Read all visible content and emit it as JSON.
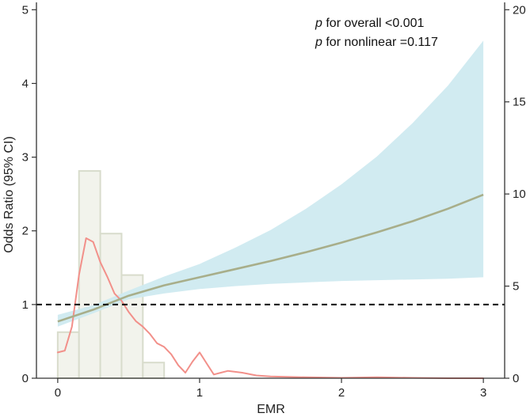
{
  "chart_data": {
    "type": "line",
    "xlabel": "EMR",
    "ylabel": "Odds Ratio (95% CI)",
    "xlim": [
      -0.15,
      3.15
    ],
    "ylim": [
      0,
      5.1
    ],
    "y2lim": [
      0,
      20.4
    ],
    "x_ticks": [
      0,
      1,
      2,
      3
    ],
    "y_ticks": [
      0,
      1,
      2,
      3,
      4,
      5
    ],
    "y2_ticks": [
      0,
      5,
      10,
      15,
      20
    ],
    "annotations": [
      {
        "italic": "p",
        "text": " for overall <0.001"
      },
      {
        "italic": "p",
        "text": " for nonlinear =0.117"
      }
    ],
    "reference_line": {
      "y": 1,
      "style": "dashed"
    },
    "colors": {
      "or_line": "#a8ae8a",
      "ci_band": "#cfeaf0",
      "density": "#f2908a",
      "histogram_fill": "#f2f3ec",
      "histogram_edge": "#d8dccc",
      "reference": "#000000"
    },
    "series": [
      {
        "kind": "odds_ratio",
        "x": [
          0,
          0.25,
          0.5,
          0.75,
          1,
          1.25,
          1.5,
          1.75,
          2,
          2.25,
          2.5,
          2.75,
          3
        ],
        "y": [
          0.77,
          0.93,
          1.12,
          1.26,
          1.37,
          1.48,
          1.59,
          1.71,
          1.84,
          1.98,
          2.13,
          2.3,
          2.49
        ],
        "lower": [
          0.7,
          0.88,
          1.07,
          1.15,
          1.21,
          1.25,
          1.28,
          1.3,
          1.32,
          1.33,
          1.34,
          1.35,
          1.37
        ],
        "upper": [
          0.86,
          0.99,
          1.19,
          1.38,
          1.55,
          1.77,
          2.01,
          2.3,
          2.63,
          3.01,
          3.46,
          3.97,
          4.58
        ]
      },
      {
        "kind": "density",
        "axis": "right",
        "x": [
          0,
          0.05,
          0.1,
          0.15,
          0.2,
          0.25,
          0.3,
          0.35,
          0.4,
          0.45,
          0.5,
          0.55,
          0.6,
          0.65,
          0.7,
          0.75,
          0.8,
          0.85,
          0.9,
          0.95,
          1.0,
          1.05,
          1.1,
          1.15,
          1.2,
          1.3,
          1.4,
          1.5,
          1.75,
          2.0,
          2.25,
          2.5,
          2.75,
          3.0
        ],
        "y": [
          1.4,
          1.5,
          2.8,
          5.6,
          7.6,
          7.4,
          6.3,
          5.5,
          4.6,
          4.2,
          3.6,
          3.1,
          2.8,
          2.4,
          1.9,
          1.7,
          1.3,
          0.7,
          0.3,
          0.9,
          1.4,
          0.8,
          0.2,
          0.3,
          0.4,
          0.3,
          0.15,
          0.1,
          0.05,
          0.02,
          0.05,
          0.02,
          0.0,
          0.0
        ]
      },
      {
        "kind": "histogram",
        "axis": "right",
        "bin_edges": [
          0,
          0.15,
          0.3,
          0.45,
          0.6,
          0.75
        ],
        "values": [
          2.5,
          11.25,
          7.85,
          5.6,
          0.85
        ]
      }
    ]
  }
}
